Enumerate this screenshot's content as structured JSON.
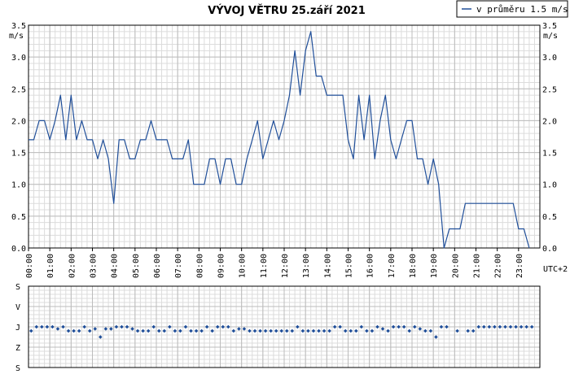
{
  "chart_data": [
    {
      "type": "line",
      "title": "VÝVOJ VĚTRU  25.září 2021",
      "ylabel": "m/s",
      "xlabel": "UTC+2",
      "legend": {
        "label": "v průměru 1.5 m/s",
        "placement": "top-right"
      },
      "ylim": [
        0,
        3.5
      ],
      "yticks": [
        "0.0",
        "0.5",
        "1.0",
        "1.5",
        "2.0",
        "2.5",
        "3.0",
        "3.5"
      ],
      "xlim": [
        0,
        24
      ],
      "xticks": [
        "00:00",
        "01:00",
        "02:00",
        "03:00",
        "04:00",
        "05:00",
        "06:00",
        "07:00",
        "08:00",
        "09:00",
        "10:00",
        "11:00",
        "12:00",
        "13:00",
        "14:00",
        "15:00",
        "16:00",
        "17:00",
        "18:00",
        "19:00",
        "20:00",
        "21:00",
        "22:00",
        "23:00"
      ],
      "grid": true,
      "line_color": "#1f4e99",
      "series": [
        {
          "values": [
            1.7,
            1.7,
            2.0,
            2.0,
            1.7,
            2.0,
            2.4,
            1.7,
            2.4,
            1.7,
            2.0,
            1.7,
            1.7,
            1.4,
            1.7,
            1.4,
            0.7,
            1.7,
            1.7,
            1.4,
            1.4,
            1.7,
            1.7,
            2.0,
            1.7,
            1.7,
            1.7,
            1.4,
            1.4,
            1.4,
            1.7,
            1.0,
            1.0,
            1.0,
            1.4,
            1.4,
            1.0,
            1.4,
            1.4,
            1.0,
            1.0,
            1.4,
            1.7,
            2.0,
            1.4,
            1.7,
            2.0,
            1.7,
            2.0,
            2.4,
            3.1,
            2.4,
            3.1,
            3.4,
            2.7,
            2.7,
            2.4,
            2.4,
            2.4,
            2.4,
            1.7,
            1.4,
            2.4,
            1.7,
            2.4,
            1.4,
            2.0,
            2.4,
            1.7,
            1.4,
            1.7,
            2.0,
            2.0,
            1.4,
            1.4,
            1.0,
            1.4,
            1.0,
            0.0,
            0.3,
            0.3,
            0.3,
            0.7,
            0.7,
            0.7,
            0.7,
            0.7,
            0.7,
            0.7,
            0.7,
            0.7,
            0.7,
            0.3,
            0.3,
            0.0
          ]
        }
      ]
    },
    {
      "type": "scatter",
      "xlabel": "",
      "ylabel": "",
      "categories": [
        "S",
        "V",
        "J",
        "Z",
        "S"
      ],
      "xlim": [
        0,
        24
      ],
      "grid": true,
      "marker_color": "#1f4e99",
      "x_step_hours": 0.25,
      "series": [
        {
          "values": [
            2.2,
            2,
            2,
            2,
            2,
            2.1,
            2,
            2.2,
            2.2,
            2.2,
            2,
            2.2,
            2.1,
            2.5,
            2.1,
            2.1,
            2,
            2,
            2,
            2.1,
            2.2,
            2.2,
            2.2,
            2,
            2.2,
            2.2,
            2,
            2.2,
            2.2,
            2,
            2.2,
            2.2,
            2.2,
            2,
            2.2,
            2,
            2,
            2,
            2.2,
            2.1,
            2.1,
            2.2,
            2.2,
            2.2,
            2.2,
            2.2,
            2.2,
            2.2,
            2.2,
            2.2,
            2,
            2.2,
            2.2,
            2.2,
            2.2,
            2.2,
            2.2,
            2,
            2,
            2.2,
            2.2,
            2.2,
            2,
            2.2,
            2.2,
            2,
            2.1,
            2.2,
            2,
            2,
            2,
            2.2,
            2,
            2.1,
            2.2,
            2.2,
            2.5,
            2,
            2,
            null,
            2.2,
            null,
            2.2,
            2.2,
            2,
            2,
            2,
            2,
            2,
            2,
            2,
            2,
            2,
            2,
            2
          ]
        }
      ]
    }
  ]
}
